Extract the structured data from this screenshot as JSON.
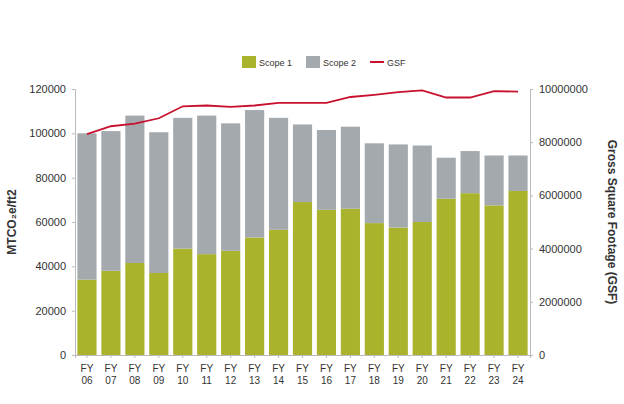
{
  "chart_data": {
    "type": "bar",
    "stacked": true,
    "legend": "top",
    "y_label": "MTCO₂e/ft2",
    "y2_label": "Gross Square Footage (GSF)",
    "categories": [
      "FY 06",
      "FY 07",
      "FY 08",
      "FY 09",
      "FY 10",
      "FY 11",
      "FY 12",
      "FY 13",
      "FY 14",
      "FY 15",
      "FY 16",
      "FY 17",
      "FY 18",
      "FY 19",
      "FY 20",
      "FY 21",
      "FY 22",
      "FY 23",
      "FY 24"
    ],
    "ylim": [
      0,
      120000
    ],
    "yticks": [
      0,
      20000,
      40000,
      60000,
      80000,
      100000,
      120000
    ],
    "y2lim": [
      0,
      10000000
    ],
    "y2ticks": [
      0,
      2000000,
      4000000,
      6000000,
      8000000,
      10000000
    ],
    "series": [
      {
        "name": "Scope 1",
        "type": "bar",
        "color": "#a9b42c",
        "values": [
          34000,
          38000,
          41500,
          37000,
          48000,
          45500,
          47000,
          53000,
          56500,
          69000,
          65500,
          66000,
          59500,
          57500,
          60000,
          70500,
          73000,
          67500,
          74000
        ]
      },
      {
        "name": "Scope 2",
        "type": "bar",
        "color": "#a4a9ae",
        "values": [
          66000,
          63000,
          66500,
          63500,
          59000,
          62500,
          57500,
          57500,
          50500,
          35000,
          36000,
          37000,
          36000,
          37500,
          34500,
          18500,
          19000,
          22500,
          16000
        ]
      },
      {
        "name": "GSF",
        "type": "line",
        "axis": "y2",
        "color": "#c8102e",
        "line_style": "solid",
        "values": [
          8300000,
          8600000,
          8700000,
          8900000,
          9350000,
          9380000,
          9330000,
          9380000,
          9480000,
          9480000,
          9480000,
          9700000,
          9780000,
          9880000,
          9950000,
          9680000,
          9680000,
          9920000,
          9900000
        ]
      }
    ]
  }
}
